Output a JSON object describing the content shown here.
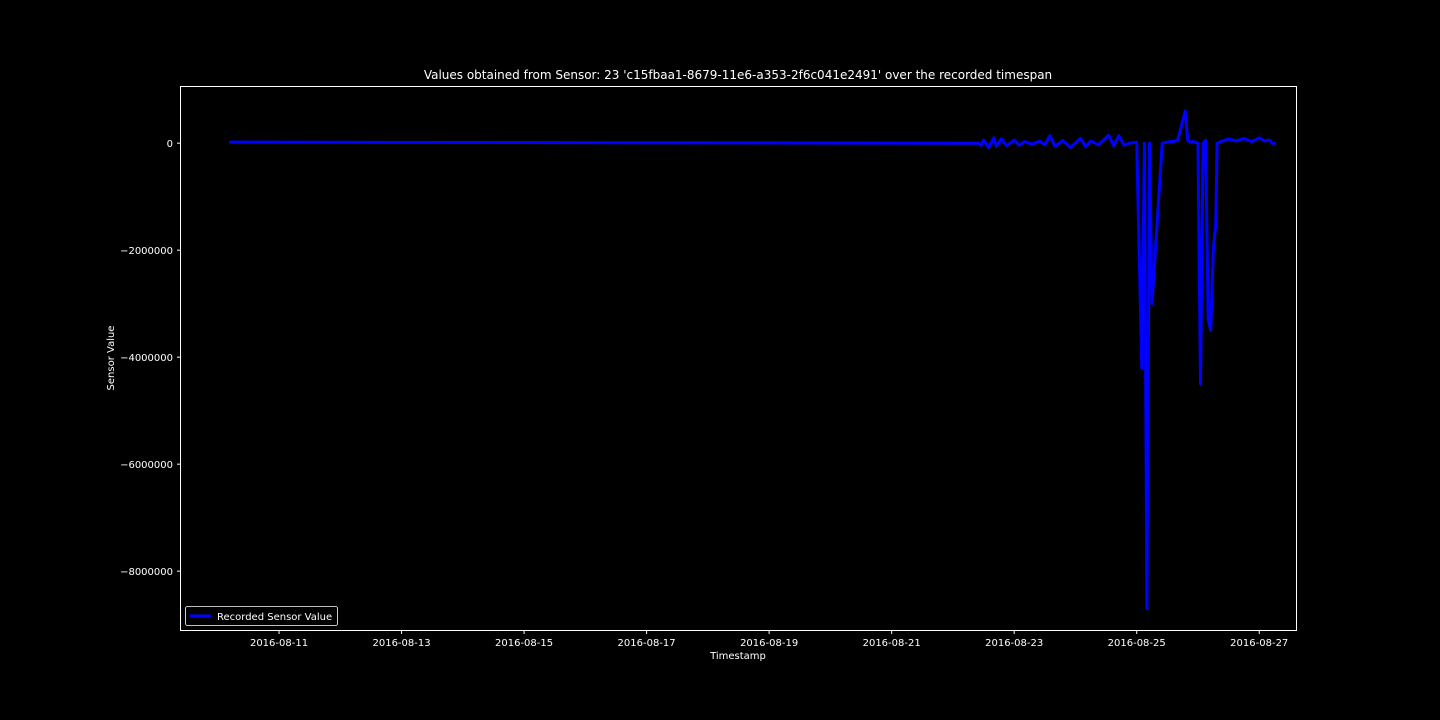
{
  "chart_data": {
    "type": "line",
    "title": "Values obtained from Sensor: 23 'c15fbaa1-8679-11e6-a353-2f6c041e2491' over the recorded timespan",
    "xlabel": "Timestamp",
    "ylabel": "Sensor Value",
    "xlim": [
      "2016-08-09T09:36",
      "2016-08-27T14:24"
    ],
    "ylim": [
      -9100000,
      1050000
    ],
    "x_ticks": [
      "2016-08-11",
      "2016-08-13",
      "2016-08-15",
      "2016-08-17",
      "2016-08-19",
      "2016-08-21",
      "2016-08-23",
      "2016-08-25",
      "2016-08-27"
    ],
    "y_ticks": [
      0,
      -2000000,
      -4000000,
      -6000000,
      -8000000
    ],
    "y_tick_labels": [
      "0",
      "−2000000",
      "−4000000",
      "−6000000",
      "−8000000"
    ],
    "grid": false,
    "legend": {
      "position": "lower-left",
      "entries": [
        "Recorded Sensor Value"
      ]
    },
    "series": [
      {
        "name": "Recorded Sensor Value",
        "color": "#0000ff",
        "x": [
          "2016-08-10T05:00",
          "2016-08-22T10:00",
          "2016-08-22T11:00",
          "2016-08-22T12:00",
          "2016-08-22T14:00",
          "2016-08-22T16:00",
          "2016-08-22T17:00",
          "2016-08-22T19:00",
          "2016-08-22T21:00",
          "2016-08-23T00:00",
          "2016-08-23T02:00",
          "2016-08-23T04:00",
          "2016-08-23T07:00",
          "2016-08-23T10:00",
          "2016-08-23T12:00",
          "2016-08-23T14:00",
          "2016-08-23T16:00",
          "2016-08-23T19:00",
          "2016-08-23T22:00",
          "2016-08-24T02:00",
          "2016-08-24T04:00",
          "2016-08-24T06:00",
          "2016-08-24T09:00",
          "2016-08-24T13:00",
          "2016-08-24T15:00",
          "2016-08-24T17:00",
          "2016-08-24T19:00",
          "2016-08-24T21:00",
          "2016-08-25T00:00",
          "2016-08-25T02:00",
          "2016-08-25T03:00",
          "2016-08-25T04:00",
          "2016-08-25T05:00",
          "2016-08-25T06:00",
          "2016-08-25T10:00",
          "2016-08-25T12:00",
          "2016-08-25T13:00",
          "2016-08-25T14:00",
          "2016-08-25T16:00",
          "2016-08-25T19:00",
          "2016-08-25T20:00",
          "2016-08-25T21:00",
          "2016-08-25T22:00",
          "2016-08-26T00:00",
          "2016-08-26T01:00",
          "2016-08-26T02:00",
          "2016-08-26T03:00",
          "2016-08-26T04:00",
          "2016-08-26T05:00",
          "2016-08-26T06:00",
          "2016-08-26T07:00",
          "2016-08-26T07:30",
          "2016-08-26T09:00",
          "2016-08-26T12:00",
          "2016-08-26T15:00",
          "2016-08-26T18:00",
          "2016-08-26T21:00",
          "2016-08-27T00:00",
          "2016-08-27T02:00",
          "2016-08-27T04:00",
          "2016-08-27T05:00",
          "2016-08-27T06:00"
        ],
        "values": [
          20000,
          0,
          -40000,
          60000,
          -80000,
          100000,
          -60000,
          80000,
          -50000,
          60000,
          -40000,
          30000,
          -20000,
          40000,
          -30000,
          140000,
          -60000,
          50000,
          -80000,
          90000,
          -70000,
          40000,
          -30000,
          150000,
          -50000,
          140000,
          -40000,
          0,
          20000,
          -4200000,
          0,
          -8700000,
          0,
          -3000000,
          0,
          20000,
          30000,
          30000,
          50000,
          600000,
          50000,
          20000,
          30000,
          0,
          -4500000,
          0,
          50000,
          -3300000,
          -3500000,
          -2000000,
          -1500000,
          0,
          30000,
          80000,
          40000,
          90000,
          30000,
          100000,
          40000,
          60000,
          0,
          0
        ]
      }
    ]
  }
}
